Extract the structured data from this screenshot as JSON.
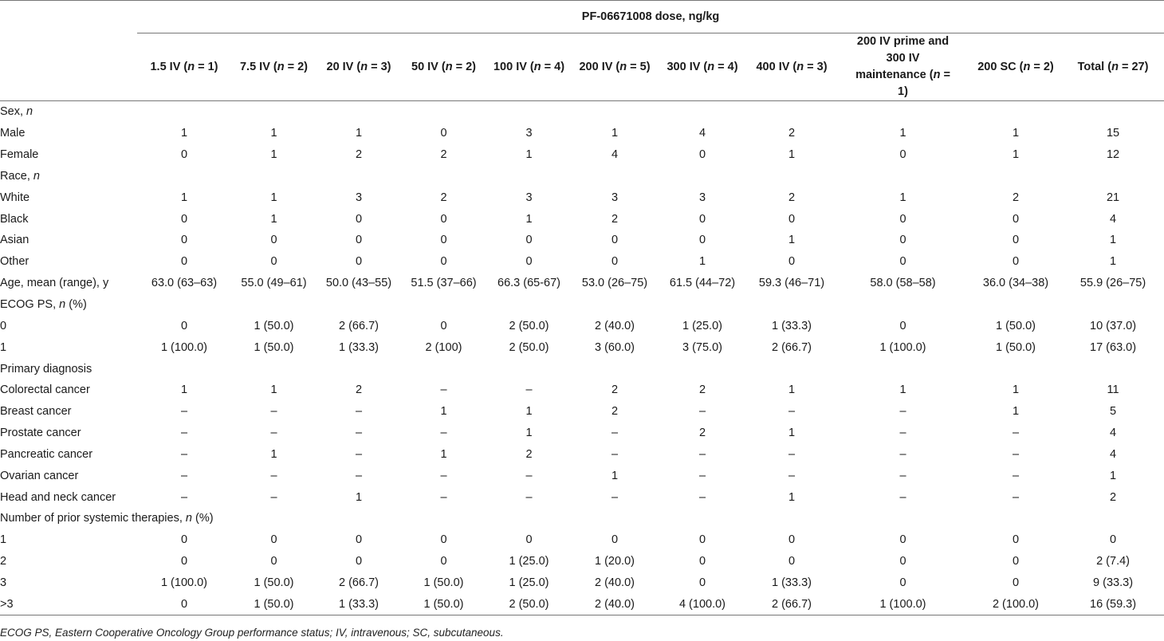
{
  "table": {
    "group_header": "PF-06671008 dose, ng/kg",
    "columns": [
      {
        "base": "1.5 IV (",
        "n": "n",
        "rest": " = 1)"
      },
      {
        "base": "7.5 IV (",
        "n": "n",
        "rest": " = 2)"
      },
      {
        "base": "20 IV (",
        "n": "n",
        "rest": " = 3)"
      },
      {
        "base": "50 IV (",
        "n": "n",
        "rest": " = 2)"
      },
      {
        "base": "100 IV (",
        "n": "n",
        "rest": " = 4)"
      },
      {
        "base": "200 IV (",
        "n": "n",
        "rest": " = 5)"
      },
      {
        "base": "300 IV (",
        "n": "n",
        "rest": " = 4)"
      },
      {
        "base": "400 IV (",
        "n": "n",
        "rest": " = 3)"
      },
      {
        "base": "200 IV prime and 300 IV maintenance (",
        "n": "n",
        "rest": " = 1)"
      },
      {
        "base": "200 SC (",
        "n": "n",
        "rest": " = 2)"
      },
      {
        "base": "Total (",
        "n": "n",
        "rest": " = 27)"
      }
    ],
    "rows": [
      {
        "label": "Sex, ",
        "label_italic": "n",
        "label_suffix": "",
        "indent": false,
        "values": []
      },
      {
        "label": "Male",
        "indent": true,
        "values": [
          "1",
          "1",
          "1",
          "0",
          "3",
          "1",
          "4",
          "2",
          "1",
          "1",
          "15"
        ]
      },
      {
        "label": "Female",
        "indent": true,
        "values": [
          "0",
          "1",
          "2",
          "2",
          "1",
          "4",
          "0",
          "1",
          "0",
          "1",
          "12"
        ]
      },
      {
        "label": "Race, ",
        "label_italic": "n",
        "label_suffix": "",
        "indent": false,
        "values": []
      },
      {
        "label": "White",
        "indent": true,
        "values": [
          "1",
          "1",
          "3",
          "2",
          "3",
          "3",
          "3",
          "2",
          "1",
          "2",
          "21"
        ]
      },
      {
        "label": "Black",
        "indent": true,
        "values": [
          "0",
          "1",
          "0",
          "0",
          "1",
          "2",
          "0",
          "0",
          "0",
          "0",
          "4"
        ]
      },
      {
        "label": "Asian",
        "indent": true,
        "values": [
          "0",
          "0",
          "0",
          "0",
          "0",
          "0",
          "0",
          "1",
          "0",
          "0",
          "1"
        ]
      },
      {
        "label": "Other",
        "indent": true,
        "values": [
          "0",
          "0",
          "0",
          "0",
          "0",
          "0",
          "1",
          "0",
          "0",
          "0",
          "1"
        ]
      },
      {
        "label": "Age, mean (range), y",
        "indent": false,
        "values": [
          "63.0 (63–63)",
          "55.0 (49–61)",
          "50.0 (43–55)",
          "51.5 (37–66)",
          "66.3 (65-67)",
          "53.0 (26–75)",
          "61.5 (44–72)",
          "59.3 (46–71)",
          "58.0 (58–58)",
          "36.0 (34–38)",
          "55.9 (26–75)"
        ]
      },
      {
        "label": "ECOG PS, ",
        "label_italic": "n",
        "label_suffix": " (%)",
        "indent": false,
        "values": []
      },
      {
        "label": "0",
        "indent": true,
        "values": [
          "0",
          "1 (50.0)",
          "2 (66.7)",
          "0",
          "2 (50.0)",
          "2 (40.0)",
          "1 (25.0)",
          "1 (33.3)",
          "0",
          "1 (50.0)",
          "10 (37.0)"
        ]
      },
      {
        "label": "1",
        "indent": true,
        "values": [
          "1 (100.0)",
          "1 (50.0)",
          "1 (33.3)",
          "2 (100)",
          "2 (50.0)",
          "3 (60.0)",
          "3 (75.0)",
          "2 (66.7)",
          "1 (100.0)",
          "1 (50.0)",
          "17 (63.0)"
        ]
      },
      {
        "label": "Primary diagnosis",
        "indent": false,
        "values": []
      },
      {
        "label": "Colorectal cancer",
        "indent": true,
        "values": [
          "1",
          "1",
          "2",
          "–",
          "–",
          "2",
          "2",
          "1",
          "1",
          "1",
          "11"
        ]
      },
      {
        "label": "Breast cancer",
        "indent": true,
        "values": [
          "–",
          "–",
          "–",
          "1",
          "1",
          "2",
          "–",
          "–",
          "–",
          "1",
          "5"
        ]
      },
      {
        "label": "Prostate cancer",
        "indent": true,
        "values": [
          "–",
          "–",
          "–",
          "–",
          "1",
          "–",
          "2",
          "1",
          "–",
          "–",
          "4"
        ]
      },
      {
        "label": "Pancreatic cancer",
        "indent": true,
        "values": [
          "–",
          "1",
          "–",
          "1",
          "2",
          "–",
          "–",
          "–",
          "–",
          "–",
          "4"
        ]
      },
      {
        "label": "Ovarian cancer",
        "indent": true,
        "values": [
          "–",
          "–",
          "–",
          "–",
          "–",
          "1",
          "–",
          "–",
          "–",
          "–",
          "1"
        ]
      },
      {
        "label": "Head and neck cancer",
        "indent": true,
        "values": [
          "–",
          "–",
          "1",
          "–",
          "–",
          "–",
          "–",
          "1",
          "–",
          "–",
          "2"
        ]
      },
      {
        "label": "Number of prior systemic therapies, ",
        "label_italic": "n",
        "label_suffix": " (%)",
        "indent": false,
        "values": []
      },
      {
        "label": "1",
        "indent": true,
        "values": [
          "0",
          "0",
          "0",
          "0",
          "0",
          "0",
          "0",
          "0",
          "0",
          "0",
          "0"
        ]
      },
      {
        "label": "2",
        "indent": true,
        "values": [
          "0",
          "0",
          "0",
          "0",
          "1 (25.0)",
          "1 (20.0)",
          "0",
          "0",
          "0",
          "0",
          "2 (7.4)"
        ]
      },
      {
        "label": "3",
        "indent": true,
        "values": [
          "1 (100.0)",
          "1 (50.0)",
          "2 (66.7)",
          "1 (50.0)",
          "1 (25.0)",
          "2 (40.0)",
          "0",
          "1 (33.3)",
          "0",
          "0",
          "9 (33.3)"
        ]
      },
      {
        "label": ">3",
        "indent": true,
        "values": [
          "0",
          "1 (50.0)",
          "1 (33.3)",
          "1 (50.0)",
          "2 (50.0)",
          "2 (40.0)",
          "4 (100.0)",
          "2 (66.7)",
          "1 (100.0)",
          "2 (100.0)",
          "16 (59.3)"
        ]
      }
    ]
  },
  "footnote": "ECOG PS, Eastern Cooperative Oncology Group performance status; IV, intravenous; SC, subcutaneous."
}
